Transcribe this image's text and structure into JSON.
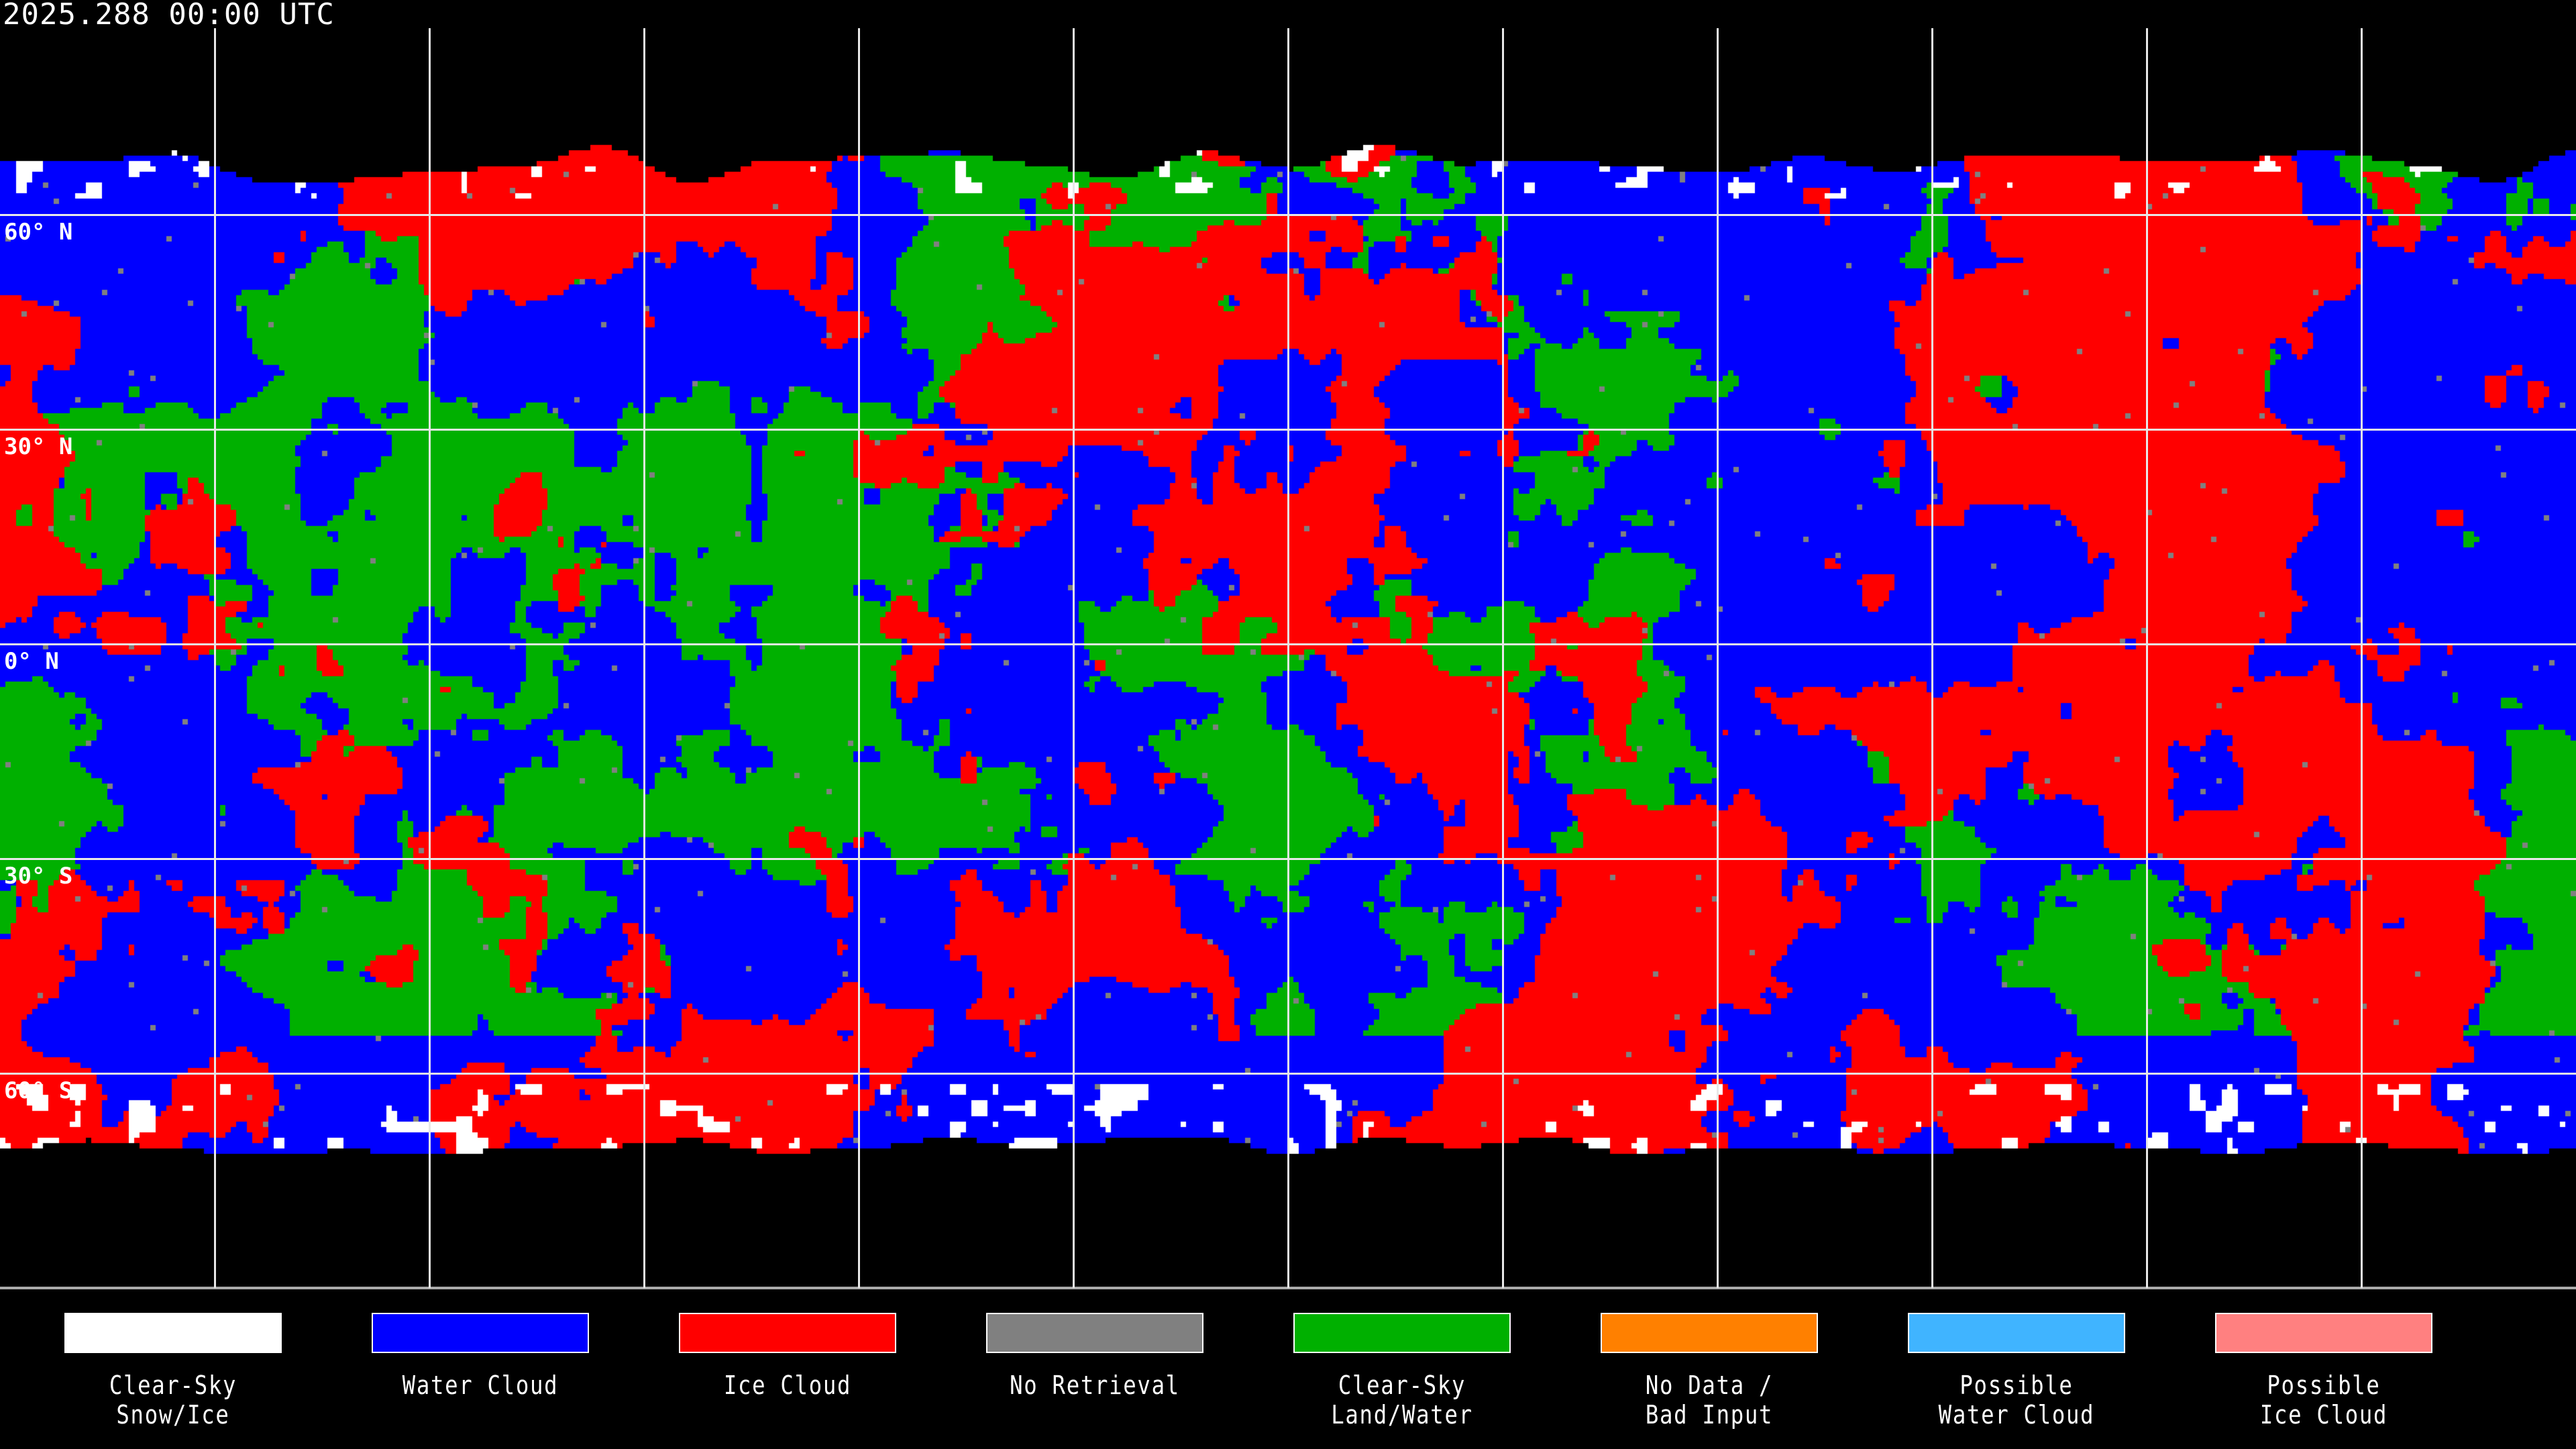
{
  "title": "2025.288 00:00 UTC",
  "latitude_labels": [
    "60° N",
    "30° N",
    "0° N",
    "30° S",
    "60° S"
  ],
  "legend": [
    {
      "label": "Clear-Sky\nSnow/Ice",
      "color": "#ffffff"
    },
    {
      "label": "Water Cloud",
      "color": "#0000ff"
    },
    {
      "label": "Ice Cloud",
      "color": "#ff0000"
    },
    {
      "label": "No Retrieval",
      "color": "#808080"
    },
    {
      "label": "Clear-Sky\nLand/Water",
      "color": "#00b000"
    },
    {
      "label": "No Data /\nBad Input",
      "color": "#ff8000"
    },
    {
      "label": "Possible\nWater Cloud",
      "color": "#40b4ff"
    },
    {
      "label": "Possible\nIce Cloud",
      "color": "#ff8080"
    }
  ],
  "background_color": "#000000",
  "gridline_color": "#e8e8e8"
}
